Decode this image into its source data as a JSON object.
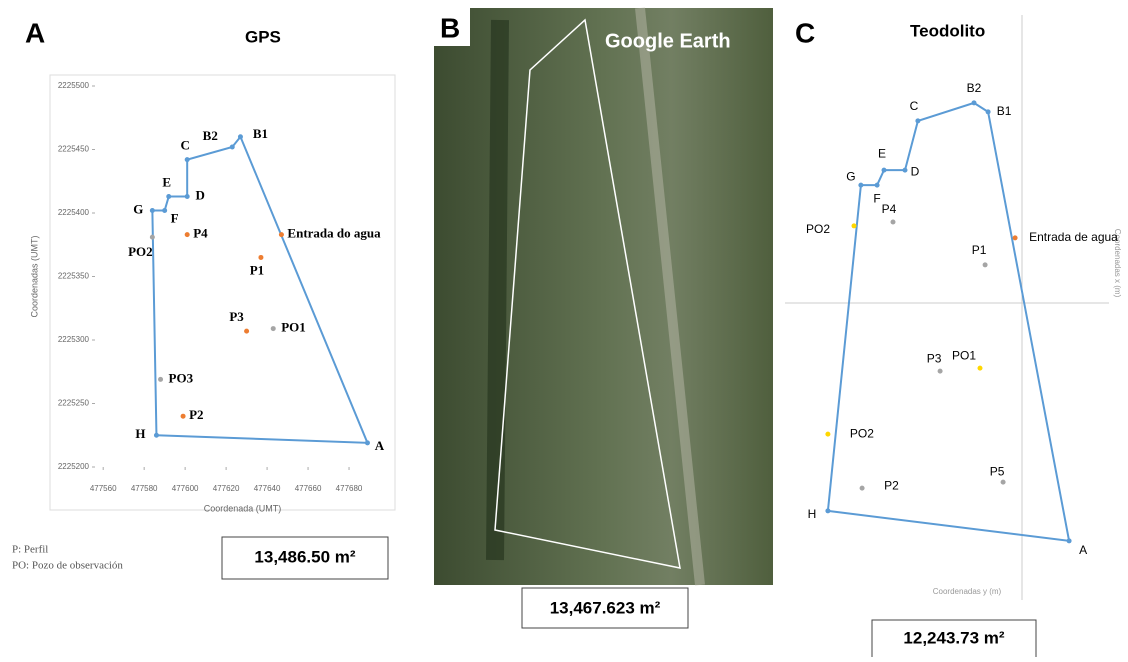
{
  "chart_data": [
    {
      "type": "line",
      "panel": "A",
      "title": "GPS",
      "xlabel": "Coordenada (UMT)",
      "ylabel": "Coordenadas (UMT)",
      "xlim": [
        477556,
        477700
      ],
      "ylim": [
        2225200,
        2225500
      ],
      "xticks": [
        477560,
        477580,
        477600,
        477620,
        477640,
        477660,
        477680
      ],
      "yticks": [
        2225200,
        2225250,
        2225300,
        2225350,
        2225400,
        2225450,
        2225500
      ],
      "boundary": {
        "color": "#5b9bd5",
        "labels": [
          "H",
          "A",
          "B1",
          "B2",
          "C",
          "D",
          "E",
          "F",
          "G"
        ],
        "x": [
          477586,
          477689,
          477627,
          477623,
          477601,
          477601,
          477592,
          477590,
          477584
        ],
        "y": [
          2225225,
          2225219,
          2225460,
          2225452,
          2225442,
          2225413,
          2225413,
          2225402,
          2225402
        ]
      },
      "points": {
        "labels": [
          "Entrada do agua",
          "P4",
          "P1",
          "PO2",
          "P3",
          "PO1",
          "PO3",
          "P2"
        ],
        "x": [
          477647,
          477601,
          477637,
          477584,
          477630,
          477643,
          477588,
          477599
        ],
        "y": [
          2225383,
          2225383,
          2225365,
          2225381,
          2225307,
          2225309,
          2225269,
          2225240
        ],
        "colors": [
          "#ed7d31",
          "#ed7d31",
          "#ed7d31",
          "#a5a5a5",
          "#ed7d31",
          "#a5a5a5",
          "#a5a5a5",
          "#ed7d31"
        ]
      },
      "area": "13,486.50 m²",
      "notes": [
        "P: Perfil",
        "PO: Pozo de observación"
      ]
    },
    {
      "type": "line",
      "panel": "C",
      "title": "Teodolito",
      "xlabel": "Coordenadas y (m)",
      "ylabel": "Coordenadas x (m)",
      "xlim": [
        -79,
        29
      ],
      "ylim": [
        -99,
        96
      ],
      "boundary": {
        "color": "#5b9bd5",
        "labels": [
          "H",
          "A",
          "B1",
          "B2",
          "C",
          "D",
          "E",
          "F",
          "G"
        ],
        "x": [
          -64.7,
          15.7,
          -11.3,
          -16,
          -34.7,
          -39,
          -46,
          -48.3,
          -53.7
        ],
        "y": [
          -69.3,
          -79.3,
          63.7,
          66.7,
          60.7,
          44.3,
          44.3,
          39.3,
          39.3
        ]
      },
      "points": {
        "labels": [
          "Entrada de agua",
          "P4",
          "PO2",
          "P1",
          "P3",
          "PO1",
          "PO2",
          "P2",
          "P5"
        ],
        "x": [
          -2.3,
          -43,
          -56,
          -12.3,
          -27.3,
          -14,
          -64.7,
          -53.3,
          -6.3
        ],
        "y": [
          21.7,
          27,
          25.7,
          12.7,
          -22.7,
          -21.7,
          -43.7,
          -61.7,
          -59.7
        ],
        "colors": [
          "#ed7d31",
          "#a5a5a5",
          "#ffd700",
          "#a5a5a5",
          "#a5a5a5",
          "#ffd700",
          "#ffd700",
          "#a5a5a5",
          "#a5a5a5"
        ]
      },
      "area": "12,243.73 m²"
    }
  ],
  "panel_b": {
    "panel": "B",
    "title": "Google Earth",
    "area": "13,467.623 m²"
  }
}
